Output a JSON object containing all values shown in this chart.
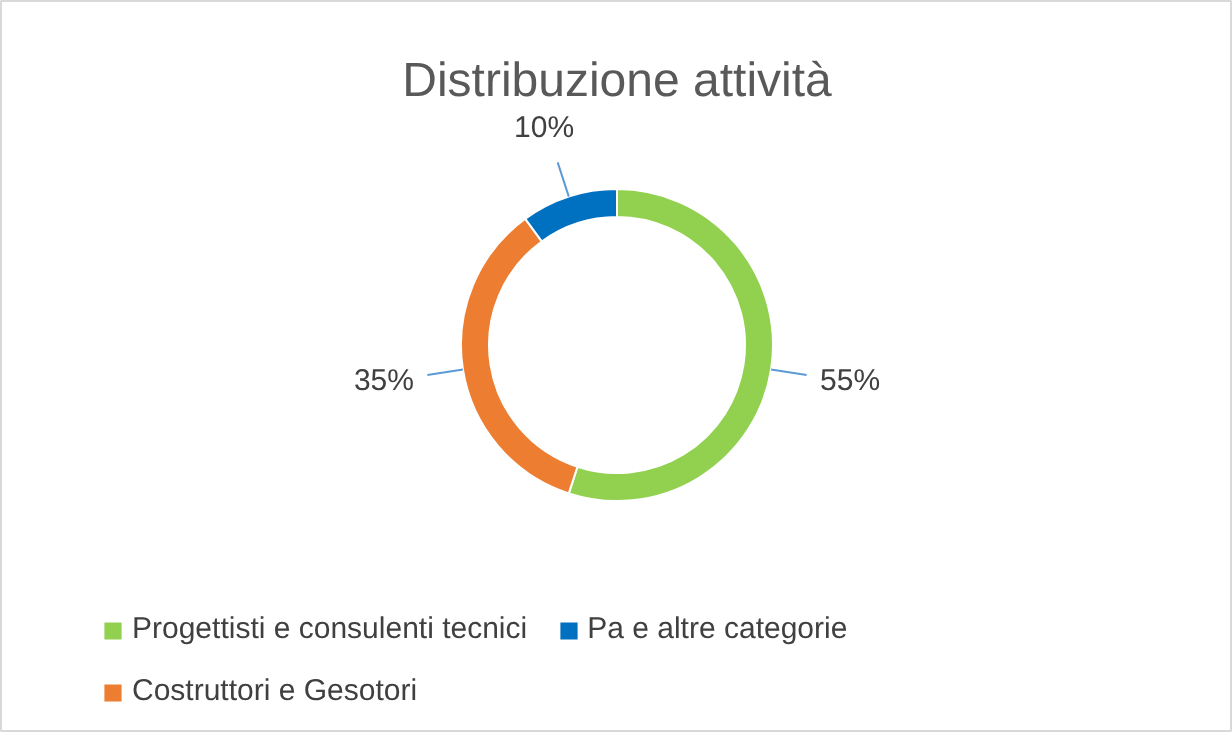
{
  "chart_data": {
    "type": "donut",
    "title": "Distribuzione attività",
    "categories": [
      "Progettisti e consulenti tecnici",
      "Costruttori e Gesotori",
      "Pa e altre categorie"
    ],
    "values": [
      55,
      35,
      10
    ],
    "colors": [
      "#92d050",
      "#ed7d31",
      "#0070c0"
    ],
    "value_labels": [
      "55%",
      "35%",
      "10%"
    ],
    "legend": "bottom"
  }
}
